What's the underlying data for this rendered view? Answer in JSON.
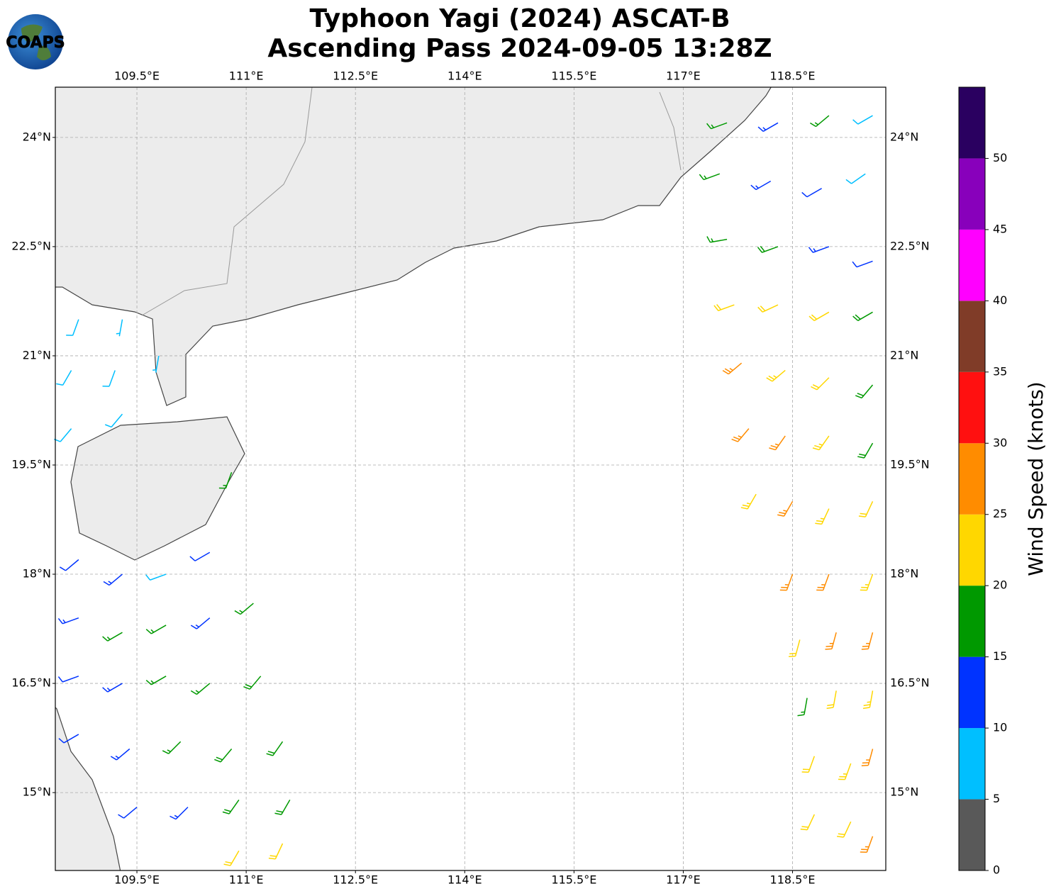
{
  "chart_data": {
    "type": "map",
    "logo": "COAPS",
    "title": "Typhoon Yagi (2024) ASCAT-B",
    "subtitle": "Ascending Pass 2024-09-05 13:28Z",
    "xlim": [
      108.38,
      119.78
    ],
    "ylim": [
      13.93,
      24.69
    ],
    "xticks": [
      {
        "value": 109.5,
        "label": "109.5°E"
      },
      {
        "value": 111,
        "label": "111°E"
      },
      {
        "value": 112.5,
        "label": "112.5°E"
      },
      {
        "value": 114,
        "label": "114°E"
      },
      {
        "value": 115.5,
        "label": "115.5°E"
      },
      {
        "value": 117,
        "label": "117°E"
      },
      {
        "value": 118.5,
        "label": "118.5°E"
      }
    ],
    "yticks": [
      {
        "value": 15,
        "label": "15°N"
      },
      {
        "value": 16.5,
        "label": "16.5°N"
      },
      {
        "value": 18,
        "label": "18°N"
      },
      {
        "value": 19.5,
        "label": "19.5°N"
      },
      {
        "value": 21,
        "label": "21°N"
      },
      {
        "value": 22.5,
        "label": "22.5°N"
      },
      {
        "value": 24,
        "label": "24°N"
      }
    ],
    "grid": true,
    "colorbar": {
      "label": "Wind Speed (knots)",
      "bounds": [
        0,
        5,
        10,
        15,
        20,
        25,
        30,
        35,
        40,
        45,
        50,
        55
      ],
      "colors": [
        "#595959",
        "#00bfff",
        "#0033ff",
        "#009900",
        "#ffd700",
        "#ff8c00",
        "#ff1010",
        "#803c28",
        "#ff00ff",
        "#8800bb",
        "#2a0060"
      ],
      "ticks": [
        0,
        5,
        10,
        15,
        20,
        25,
        30,
        35,
        40,
        45,
        50
      ]
    },
    "barbs": {
      "lon": [
        108.7,
        109.3,
        108.6,
        109.2,
        109.8,
        108.6,
        109.3,
        108.7,
        109.3,
        109.9,
        110.5,
        108.7,
        109.3,
        109.9,
        110.5,
        111.1,
        108.7,
        109.3,
        109.9,
        110.5,
        111.2,
        108.7,
        109.4,
        110.1,
        110.8,
        111.5,
        109.5,
        110.2,
        110.9,
        111.6,
        110.9,
        111.5,
        110.8,
        117.6,
        118.3,
        119.0,
        119.6,
        117.5,
        118.2,
        118.9,
        119.5,
        117.6,
        118.3,
        119.0,
        119.6,
        117.7,
        118.3,
        119.0,
        119.6,
        117.8,
        118.4,
        119.0,
        119.6,
        117.9,
        118.4,
        119.0,
        119.6,
        118.0,
        118.5,
        119.0,
        119.6,
        118.5,
        119.0,
        119.6,
        118.6,
        119.1,
        119.6,
        118.7,
        119.1,
        119.6,
        118.8,
        119.3,
        119.6,
        118.8,
        119.3,
        119.6
      ],
      "lat": [
        21.5,
        21.5,
        20.8,
        20.8,
        21.0,
        20.0,
        20.2,
        18.2,
        18.0,
        18.0,
        18.3,
        17.4,
        17.2,
        17.3,
        17.4,
        17.6,
        16.6,
        16.5,
        16.6,
        16.5,
        16.6,
        15.8,
        15.6,
        15.7,
        15.6,
        15.7,
        14.8,
        14.8,
        14.9,
        14.9,
        14.2,
        14.3,
        19.4,
        24.2,
        24.2,
        24.3,
        24.3,
        23.5,
        23.4,
        23.3,
        23.5,
        22.6,
        22.5,
        22.5,
        22.3,
        21.7,
        21.7,
        21.6,
        21.6,
        20.9,
        20.8,
        20.7,
        20.6,
        20.0,
        19.9,
        19.9,
        19.8,
        19.1,
        19.0,
        18.9,
        19.0,
        18.0,
        18.0,
        18.0,
        17.1,
        17.2,
        17.2,
        16.3,
        16.4,
        16.4,
        15.5,
        15.4,
        15.6,
        14.7,
        14.6,
        14.4
      ],
      "speed": [
        8,
        7,
        9,
        8,
        7,
        8,
        9,
        12,
        14,
        8,
        12,
        13,
        17,
        16,
        13,
        17,
        12,
        13,
        17,
        16,
        18,
        11,
        13,
        17,
        18,
        19,
        12,
        14,
        18,
        19,
        22,
        22,
        17,
        17,
        13,
        15,
        9,
        17,
        13,
        12,
        8,
        16,
        18,
        13,
        12,
        21,
        22,
        22,
        19,
        26,
        23,
        21,
        18,
        27,
        26,
        23,
        19,
        23,
        27,
        23,
        22,
        27,
        26,
        23,
        22,
        26,
        27,
        17,
        22,
        24,
        22,
        23,
        26,
        22,
        22,
        26
      ],
      "direction": [
        200,
        190,
        210,
        200,
        190,
        220,
        220,
        230,
        230,
        250,
        240,
        250,
        240,
        240,
        230,
        230,
        250,
        240,
        240,
        230,
        220,
        240,
        230,
        225,
        220,
        215,
        230,
        225,
        215,
        210,
        210,
        205,
        200,
        250,
        240,
        230,
        240,
        250,
        240,
        240,
        235,
        260,
        250,
        250,
        250,
        250,
        245,
        240,
        240,
        230,
        230,
        225,
        220,
        220,
        215,
        215,
        210,
        210,
        210,
        205,
        205,
        200,
        200,
        200,
        195,
        195,
        195,
        190,
        190,
        190,
        200,
        200,
        195,
        205,
        205,
        200
      ]
    }
  }
}
